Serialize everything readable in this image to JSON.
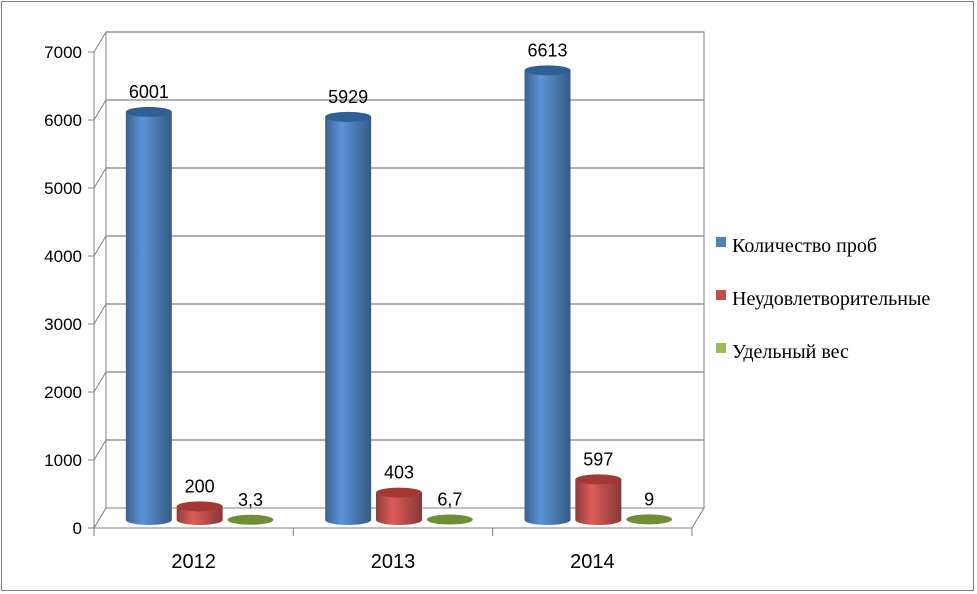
{
  "chart_data": {
    "type": "bar",
    "title": "",
    "xlabel": "",
    "ylabel": "",
    "ylim": [
      0,
      7000
    ],
    "yticks": [
      "0",
      "1000",
      "2000",
      "3000",
      "4000",
      "5000",
      "6000",
      "7000"
    ],
    "categories": [
      "2012",
      "2013",
      "2014"
    ],
    "series": [
      {
        "name": "Количество проб",
        "values": [
          6001,
          5929,
          6613
        ],
        "labels": [
          "6001",
          "5929",
          "6613"
        ],
        "color": "#4f81bd"
      },
      {
        "name": "Неудовлетворительные",
        "values": [
          200,
          403,
          597
        ],
        "labels": [
          "200",
          "403",
          "597"
        ],
        "color": "#c0504d"
      },
      {
        "name": "Удельный вес",
        "values": [
          3.3,
          6.7,
          9
        ],
        "labels": [
          "3,3",
          "6,7",
          "9"
        ],
        "color": "#9bbb59"
      }
    ],
    "grid": true,
    "legend_position": "right",
    "style": "3d-cylinder"
  }
}
